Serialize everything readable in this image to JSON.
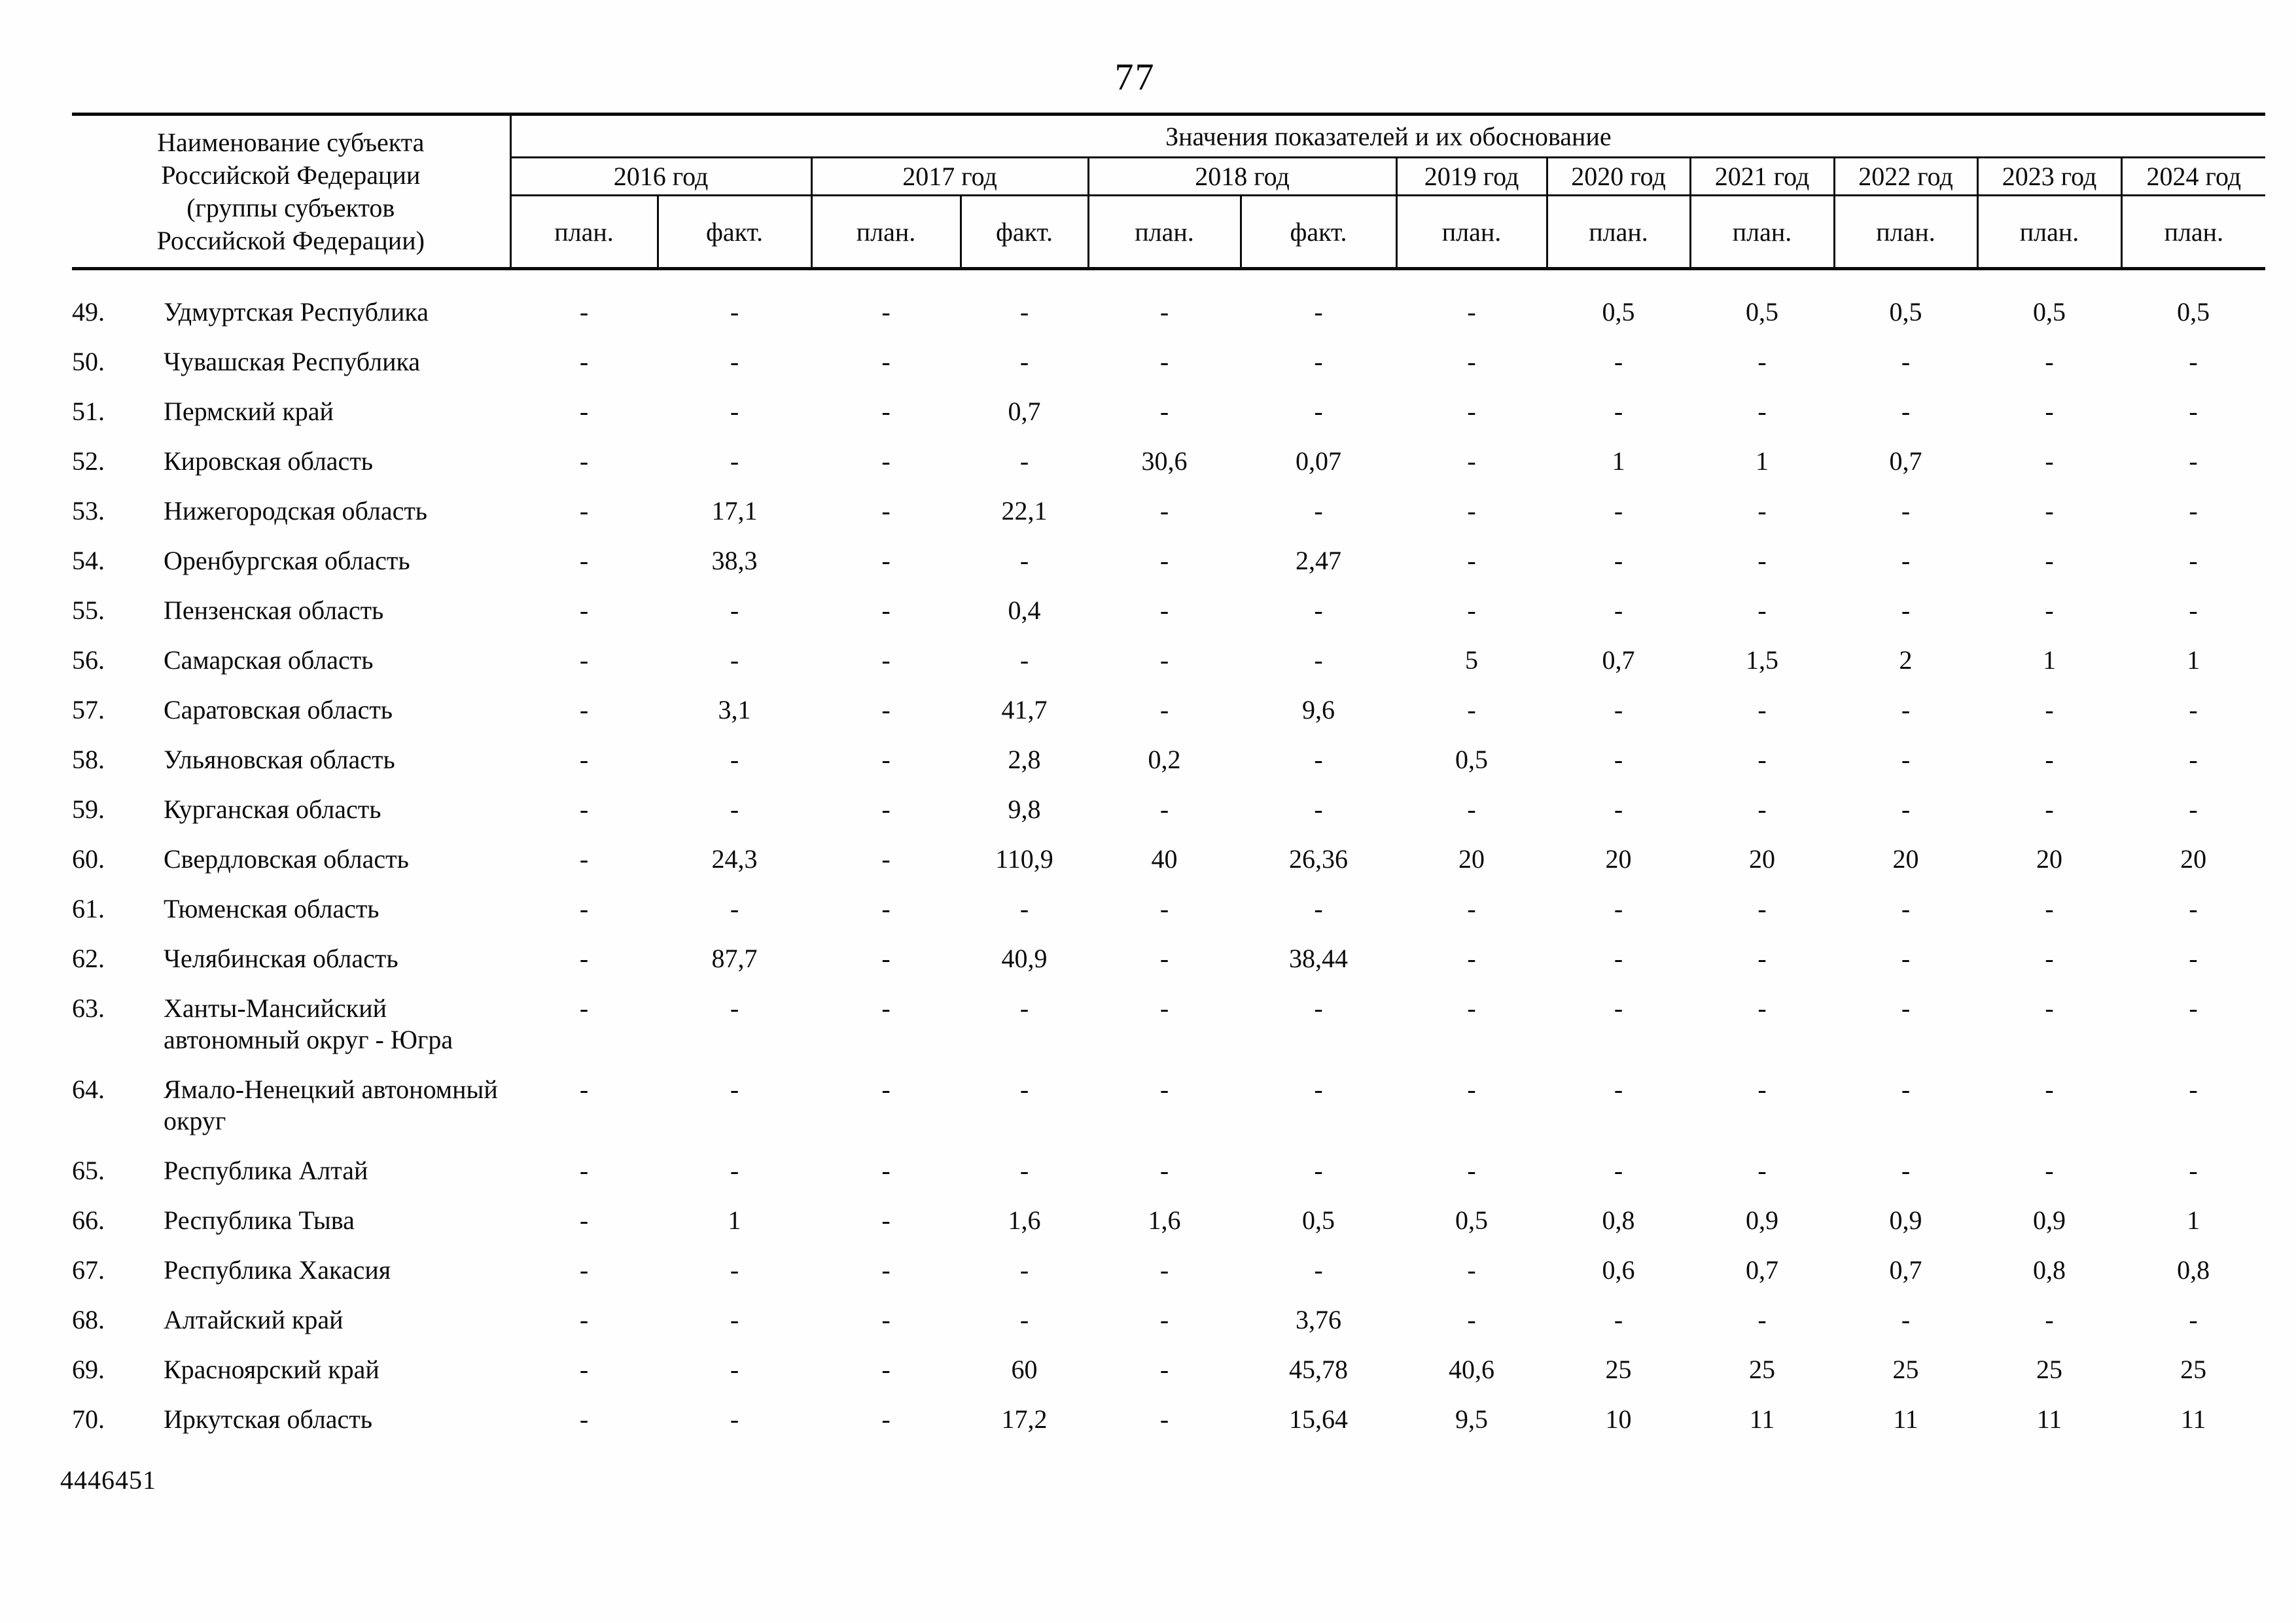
{
  "page": {
    "number": "77",
    "footer_code": "4446451"
  },
  "table": {
    "name_header_lines": [
      "Наименование субъекта",
      "Российской Федерации",
      "(группы субъектов",
      "Российской Федерации)"
    ],
    "values_header": "Значения показателей и их обоснование",
    "year_groups": [
      {
        "label": "2016 год",
        "span": 2
      },
      {
        "label": "2017 год",
        "span": 2
      },
      {
        "label": "2018 год",
        "span": 2
      },
      {
        "label": "2019 год",
        "span": 1
      },
      {
        "label": "2020 год",
        "span": 1
      },
      {
        "label": "2021 год",
        "span": 1
      },
      {
        "label": "2022 год",
        "span": 1
      },
      {
        "label": "2023 год",
        "span": 1
      },
      {
        "label": "2024 год",
        "span": 1
      }
    ],
    "sub_headers": [
      "план.",
      "факт.",
      "план.",
      "факт.",
      "план.",
      "факт.",
      "план.",
      "план.",
      "план.",
      "план.",
      "план.",
      "план."
    ],
    "rows": [
      {
        "num": "49.",
        "name": "Удмуртская Республика",
        "values": [
          "-",
          "-",
          "-",
          "-",
          "-",
          "-",
          "-",
          "0,5",
          "0,5",
          "0,5",
          "0,5",
          "0,5"
        ]
      },
      {
        "num": "50.",
        "name": "Чувашская Республика",
        "values": [
          "-",
          "-",
          "-",
          "-",
          "-",
          "-",
          "-",
          "-",
          "-",
          "-",
          "-",
          "-"
        ]
      },
      {
        "num": "51.",
        "name": "Пермский край",
        "values": [
          "-",
          "-",
          "-",
          "0,7",
          "-",
          "-",
          "-",
          "-",
          "-",
          "-",
          "-",
          "-"
        ]
      },
      {
        "num": "52.",
        "name": "Кировская область",
        "values": [
          "-",
          "-",
          "-",
          "-",
          "30,6",
          "0,07",
          "-",
          "1",
          "1",
          "0,7",
          "-",
          "-"
        ]
      },
      {
        "num": "53.",
        "name": "Нижегородская область",
        "values": [
          "-",
          "17,1",
          "-",
          "22,1",
          "-",
          "-",
          "-",
          "-",
          "-",
          "-",
          "-",
          "-"
        ]
      },
      {
        "num": "54.",
        "name": "Оренбургская область",
        "values": [
          "-",
          "38,3",
          "-",
          "-",
          "-",
          "2,47",
          "-",
          "-",
          "-",
          "-",
          "-",
          "-"
        ]
      },
      {
        "num": "55.",
        "name": "Пензенская область",
        "values": [
          "-",
          "-",
          "-",
          "0,4",
          "-",
          "-",
          "-",
          "-",
          "-",
          "-",
          "-",
          "-"
        ]
      },
      {
        "num": "56.",
        "name": "Самарская область",
        "values": [
          "-",
          "-",
          "-",
          "-",
          "-",
          "-",
          "5",
          "0,7",
          "1,5",
          "2",
          "1",
          "1"
        ]
      },
      {
        "num": "57.",
        "name": "Саратовская область",
        "values": [
          "-",
          "3,1",
          "-",
          "41,7",
          "-",
          "9,6",
          "-",
          "-",
          "-",
          "-",
          "-",
          "-"
        ]
      },
      {
        "num": "58.",
        "name": "Ульяновская область",
        "values": [
          "-",
          "-",
          "-",
          "2,8",
          "0,2",
          "-",
          "0,5",
          "-",
          "-",
          "-",
          "-",
          "-"
        ]
      },
      {
        "num": "59.",
        "name": "Курганская область",
        "values": [
          "-",
          "-",
          "-",
          "9,8",
          "-",
          "-",
          "-",
          "-",
          "-",
          "-",
          "-",
          "-"
        ]
      },
      {
        "num": "60.",
        "name": "Свердловская область",
        "values": [
          "-",
          "24,3",
          "-",
          "110,9",
          "40",
          "26,36",
          "20",
          "20",
          "20",
          "20",
          "20",
          "20"
        ]
      },
      {
        "num": "61.",
        "name": "Тюменская область",
        "values": [
          "-",
          "-",
          "-",
          "-",
          "-",
          "-",
          "-",
          "-",
          "-",
          "-",
          "-",
          "-"
        ]
      },
      {
        "num": "62.",
        "name": "Челябинская область",
        "values": [
          "-",
          "87,7",
          "-",
          "40,9",
          "-",
          "38,44",
          "-",
          "-",
          "-",
          "-",
          "-",
          "-"
        ]
      },
      {
        "num": "63.",
        "name": "Ханты-Мансийский автономный округ - Югра",
        "values": [
          "-",
          "-",
          "-",
          "-",
          "-",
          "-",
          "-",
          "-",
          "-",
          "-",
          "-",
          "-"
        ]
      },
      {
        "num": "64.",
        "name": "Ямало-Ненецкий автономный округ",
        "values": [
          "-",
          "-",
          "-",
          "-",
          "-",
          "-",
          "-",
          "-",
          "-",
          "-",
          "-",
          "-"
        ]
      },
      {
        "num": "65.",
        "name": "Республика Алтай",
        "values": [
          "-",
          "-",
          "-",
          "-",
          "-",
          "-",
          "-",
          "-",
          "-",
          "-",
          "-",
          "-"
        ]
      },
      {
        "num": "66.",
        "name": "Республика Тыва",
        "values": [
          "-",
          "1",
          "-",
          "1,6",
          "1,6",
          "0,5",
          "0,5",
          "0,8",
          "0,9",
          "0,9",
          "0,9",
          "1"
        ]
      },
      {
        "num": "67.",
        "name": "Республика Хакасия",
        "values": [
          "-",
          "-",
          "-",
          "-",
          "-",
          "-",
          "-",
          "0,6",
          "0,7",
          "0,7",
          "0,8",
          "0,8"
        ]
      },
      {
        "num": "68.",
        "name": "Алтайский край",
        "values": [
          "-",
          "-",
          "-",
          "-",
          "-",
          "3,76",
          "-",
          "-",
          "-",
          "-",
          "-",
          "-"
        ]
      },
      {
        "num": "69.",
        "name": "Красноярский край",
        "values": [
          "-",
          "-",
          "-",
          "60",
          "-",
          "45,78",
          "40,6",
          "25",
          "25",
          "25",
          "25",
          "25"
        ]
      },
      {
        "num": "70.",
        "name": "Иркутская область",
        "values": [
          "-",
          "-",
          "-",
          "17,2",
          "-",
          "15,64",
          "9,5",
          "10",
          "11",
          "11",
          "11",
          "11"
        ]
      }
    ]
  }
}
